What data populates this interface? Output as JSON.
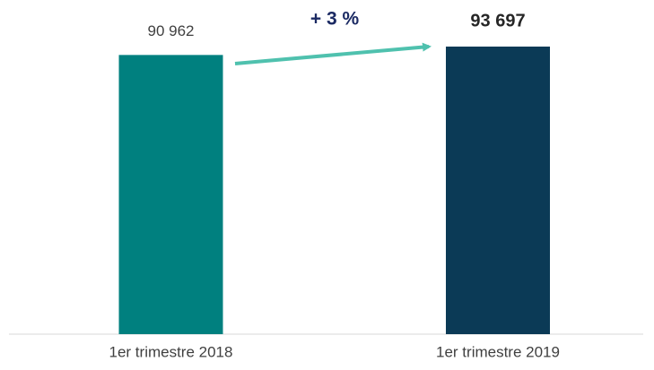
{
  "chart_data": {
    "type": "bar",
    "categories": [
      "1er trimestre 2018",
      "1er trimestre 2019"
    ],
    "values": [
      90962,
      93697
    ],
    "value_labels": [
      "90 962",
      "93 697"
    ],
    "colors": [
      "#00807f",
      "#0b3a56"
    ],
    "ylim": [
      0,
      100000
    ],
    "annotation": "+ 3 %"
  }
}
